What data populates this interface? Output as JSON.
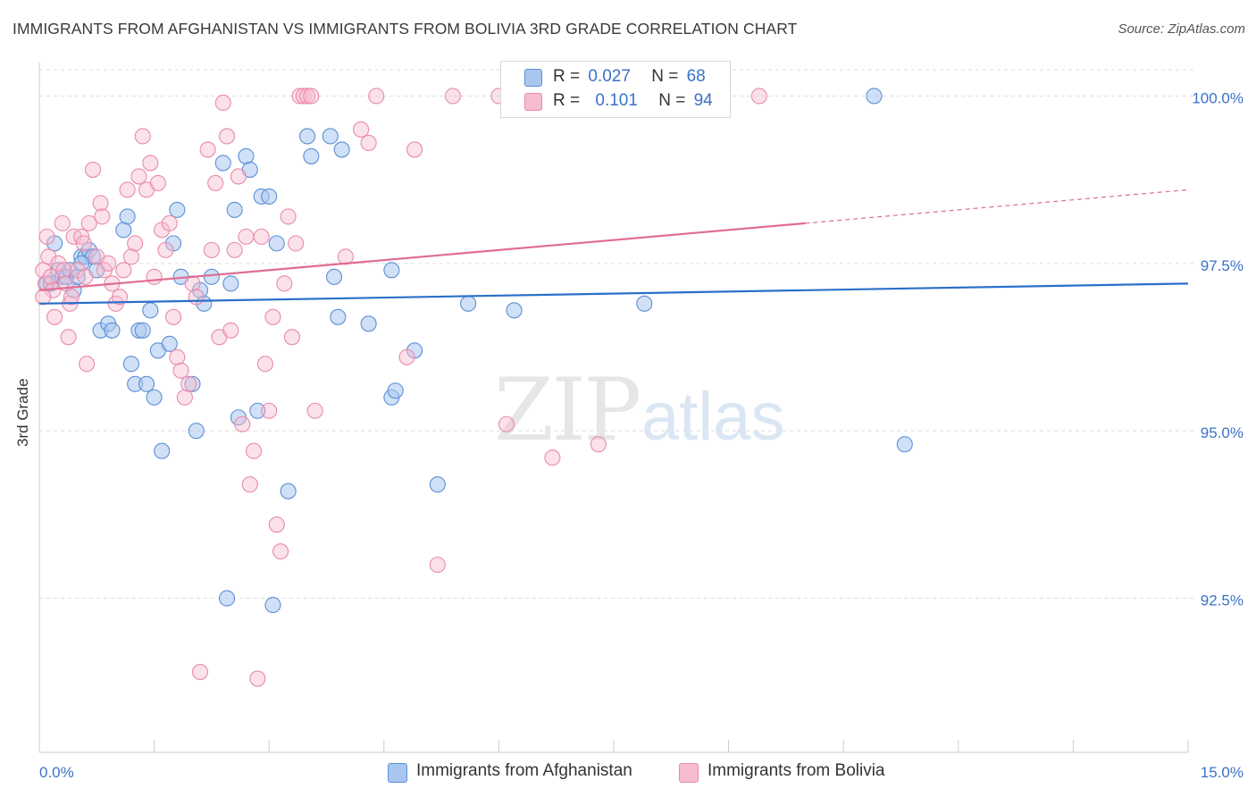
{
  "title": "IMMIGRANTS FROM AFGHANISTAN VS IMMIGRANTS FROM BOLIVIA 3RD GRADE CORRELATION CHART",
  "source": "Source: ZipAtlas.com",
  "watermark": {
    "zip": "ZIP",
    "atlas": "atlas"
  },
  "legend": {
    "r_label": "R =",
    "n_label": "N =",
    "rows": [
      {
        "r": "0.027",
        "n": "68"
      },
      {
        "r": "0.101",
        "n": "94"
      }
    ]
  },
  "bottom_legend": [
    {
      "label": "Immigrants from Afghanistan"
    },
    {
      "label": "Immigrants from Bolivia"
    }
  ],
  "colors": {
    "afghanistan_fill": "#a9c6ee",
    "afghanistan_stroke": "#5b8fd6",
    "afghanistan_line": "#2a6fc9",
    "bolivia_fill": "#f6bcd0",
    "bolivia_stroke": "#e88aaa",
    "bolivia_line": "#e06c93",
    "tick_text": "#3a73c8",
    "grid": "#dddddd"
  },
  "chart_data": {
    "type": "scatter",
    "title": "IMMIGRANTS FROM AFGHANISTAN VS IMMIGRANTS FROM BOLIVIA 3RD GRADE CORRELATION CHART",
    "xlabel": "",
    "ylabel": "3rd Grade",
    "xlim": [
      0.0,
      15.0
    ],
    "ylim": [
      90.2,
      100.5
    ],
    "x_tick_labels": [
      "0.0%",
      "15.0%"
    ],
    "y_ticks": [
      92.5,
      95.0,
      97.5,
      100.0
    ],
    "y_tick_labels": [
      "92.5%",
      "95.0%",
      "97.5%",
      "100.0%"
    ],
    "grid": true,
    "legend_position": "top-center",
    "series": [
      {
        "name": "Immigrants from Afghanistan",
        "R": 0.027,
        "N": 68,
        "trend": {
          "x": [
            0.0,
            15.0
          ],
          "y": [
            96.9,
            97.2
          ],
          "dashed_from": null
        },
        "points": [
          [
            0.1,
            97.2
          ],
          [
            0.15,
            97.2
          ],
          [
            0.2,
            97.8
          ],
          [
            0.25,
            97.4
          ],
          [
            0.3,
            97.3
          ],
          [
            0.35,
            97.3
          ],
          [
            0.4,
            97.4
          ],
          [
            0.45,
            97.1
          ],
          [
            0.5,
            97.3
          ],
          [
            0.55,
            97.6
          ],
          [
            0.6,
            97.6
          ],
          [
            0.65,
            97.7
          ],
          [
            0.7,
            97.6
          ],
          [
            0.75,
            97.4
          ],
          [
            0.8,
            96.5
          ],
          [
            0.9,
            96.6
          ],
          [
            0.95,
            96.5
          ],
          [
            1.1,
            98.0
          ],
          [
            1.15,
            98.2
          ],
          [
            1.2,
            96.0
          ],
          [
            1.25,
            95.7
          ],
          [
            1.3,
            96.5
          ],
          [
            1.35,
            96.5
          ],
          [
            1.4,
            95.7
          ],
          [
            1.45,
            96.8
          ],
          [
            1.5,
            95.5
          ],
          [
            1.55,
            96.2
          ],
          [
            1.6,
            94.7
          ],
          [
            1.7,
            96.3
          ],
          [
            1.75,
            97.8
          ],
          [
            1.8,
            98.3
          ],
          [
            1.85,
            97.3
          ],
          [
            2.0,
            95.7
          ],
          [
            2.05,
            95.0
          ],
          [
            2.1,
            97.1
          ],
          [
            2.15,
            96.9
          ],
          [
            2.4,
            99.0
          ],
          [
            2.45,
            92.5
          ],
          [
            2.5,
            97.2
          ],
          [
            2.55,
            98.3
          ],
          [
            2.6,
            95.2
          ],
          [
            2.7,
            99.1
          ],
          [
            2.75,
            98.9
          ],
          [
            2.85,
            95.3
          ],
          [
            2.9,
            98.5
          ],
          [
            3.0,
            98.5
          ],
          [
            3.1,
            97.8
          ],
          [
            3.05,
            92.4
          ],
          [
            3.25,
            94.1
          ],
          [
            3.5,
            99.4
          ],
          [
            3.55,
            99.1
          ],
          [
            3.8,
            99.4
          ],
          [
            3.85,
            97.3
          ],
          [
            3.9,
            96.7
          ],
          [
            3.95,
            99.2
          ],
          [
            4.3,
            96.6
          ],
          [
            4.6,
            95.5
          ],
          [
            4.65,
            95.6
          ],
          [
            4.6,
            97.4
          ],
          [
            4.9,
            96.2
          ],
          [
            5.2,
            94.2
          ],
          [
            5.6,
            96.9
          ],
          [
            6.2,
            96.8
          ],
          [
            7.9,
            96.9
          ],
          [
            10.9,
            100.0
          ],
          [
            11.3,
            94.8
          ],
          [
            2.25,
            97.3
          ],
          [
            0.55,
            97.5
          ]
        ]
      },
      {
        "name": "Immigrants from Bolivia",
        "R": 0.101,
        "N": 94,
        "trend": {
          "x": [
            0.0,
            15.0
          ],
          "y": [
            97.1,
            98.6
          ],
          "dashed_from": 10.0
        },
        "points": [
          [
            0.05,
            97.4
          ],
          [
            0.08,
            97.2
          ],
          [
            0.1,
            97.9
          ],
          [
            0.12,
            97.6
          ],
          [
            0.15,
            97.3
          ],
          [
            0.18,
            97.1
          ],
          [
            0.2,
            96.7
          ],
          [
            0.25,
            97.5
          ],
          [
            0.3,
            98.1
          ],
          [
            0.32,
            97.4
          ],
          [
            0.35,
            97.2
          ],
          [
            0.38,
            96.4
          ],
          [
            0.4,
            96.9
          ],
          [
            0.42,
            97.0
          ],
          [
            0.45,
            97.9
          ],
          [
            0.5,
            97.4
          ],
          [
            0.55,
            97.9
          ],
          [
            0.58,
            97.8
          ],
          [
            0.6,
            97.3
          ],
          [
            0.62,
            96.0
          ],
          [
            0.65,
            98.1
          ],
          [
            0.7,
            98.9
          ],
          [
            0.75,
            97.6
          ],
          [
            0.8,
            98.4
          ],
          [
            0.82,
            98.2
          ],
          [
            0.85,
            97.4
          ],
          [
            0.9,
            97.5
          ],
          [
            0.95,
            97.2
          ],
          [
            1.0,
            96.9
          ],
          [
            1.05,
            97.0
          ],
          [
            1.1,
            97.4
          ],
          [
            1.15,
            98.6
          ],
          [
            1.2,
            97.6
          ],
          [
            1.25,
            97.8
          ],
          [
            1.3,
            98.8
          ],
          [
            1.35,
            99.4
          ],
          [
            1.4,
            98.6
          ],
          [
            1.45,
            99.0
          ],
          [
            1.5,
            97.3
          ],
          [
            1.55,
            98.7
          ],
          [
            1.6,
            98.0
          ],
          [
            1.65,
            97.7
          ],
          [
            1.7,
            98.1
          ],
          [
            1.75,
            96.7
          ],
          [
            1.8,
            96.1
          ],
          [
            1.85,
            95.9
          ],
          [
            1.9,
            95.5
          ],
          [
            1.95,
            95.7
          ],
          [
            2.0,
            97.2
          ],
          [
            2.05,
            97.0
          ],
          [
            2.1,
            91.4
          ],
          [
            2.2,
            99.2
          ],
          [
            2.25,
            97.7
          ],
          [
            2.3,
            98.7
          ],
          [
            2.35,
            96.4
          ],
          [
            2.4,
            99.9
          ],
          [
            2.45,
            99.4
          ],
          [
            2.5,
            96.5
          ],
          [
            2.55,
            97.7
          ],
          [
            2.6,
            98.8
          ],
          [
            2.65,
            95.1
          ],
          [
            2.7,
            97.9
          ],
          [
            2.75,
            94.2
          ],
          [
            2.8,
            94.7
          ],
          [
            2.85,
            91.3
          ],
          [
            2.9,
            97.9
          ],
          [
            2.95,
            96.0
          ],
          [
            3.0,
            95.3
          ],
          [
            3.05,
            96.7
          ],
          [
            3.1,
            93.6
          ],
          [
            3.15,
            93.2
          ],
          [
            3.2,
            97.2
          ],
          [
            3.25,
            98.2
          ],
          [
            3.3,
            96.4
          ],
          [
            3.35,
            97.8
          ],
          [
            3.4,
            100.0
          ],
          [
            3.45,
            100.0
          ],
          [
            3.5,
            100.0
          ],
          [
            3.55,
            100.0
          ],
          [
            3.6,
            95.3
          ],
          [
            4.0,
            97.6
          ],
          [
            4.2,
            99.5
          ],
          [
            4.3,
            99.3
          ],
          [
            4.4,
            100.0
          ],
          [
            4.8,
            96.1
          ],
          [
            4.9,
            99.2
          ],
          [
            5.2,
            93.0
          ],
          [
            5.4,
            100.0
          ],
          [
            6.0,
            100.0
          ],
          [
            6.1,
            95.1
          ],
          [
            6.7,
            94.6
          ],
          [
            7.3,
            94.8
          ],
          [
            9.4,
            100.0
          ],
          [
            0.05,
            97.0
          ]
        ]
      }
    ]
  }
}
